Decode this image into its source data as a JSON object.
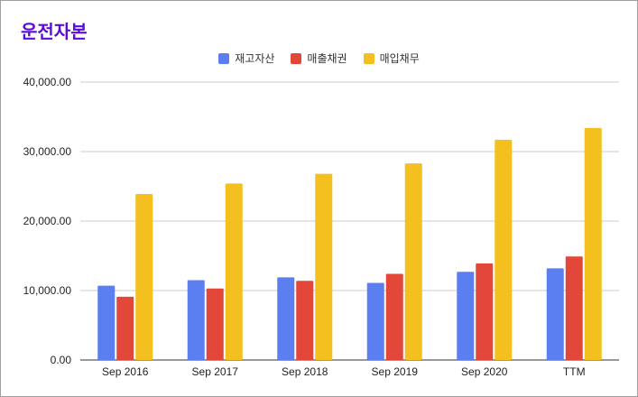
{
  "chart_data": {
    "type": "bar",
    "title": "운전자본",
    "categories": [
      "Sep 2016",
      "Sep 2017",
      "Sep 2018",
      "Sep 2019",
      "Sep 2020",
      "TTM"
    ],
    "series": [
      {
        "name": "재고자산",
        "color": "#5b7ff0",
        "values": [
          10700,
          11500,
          11900,
          11100,
          12700,
          13200
        ]
      },
      {
        "name": "매출채권",
        "color": "#e2473a",
        "values": [
          9100,
          10300,
          11400,
          12400,
          13900,
          14900
        ]
      },
      {
        "name": "매입채무",
        "color": "#f4c020",
        "values": [
          23900,
          25400,
          26800,
          28300,
          31700,
          33400
        ]
      }
    ],
    "ylim": [
      0,
      40000
    ],
    "yticks": [
      "0.00",
      "10,000.00",
      "20,000.00",
      "30,000.00",
      "40,000.00"
    ],
    "ytick_values": [
      0,
      10000,
      20000,
      30000,
      40000
    ],
    "grid": true,
    "legend_position": "top"
  }
}
